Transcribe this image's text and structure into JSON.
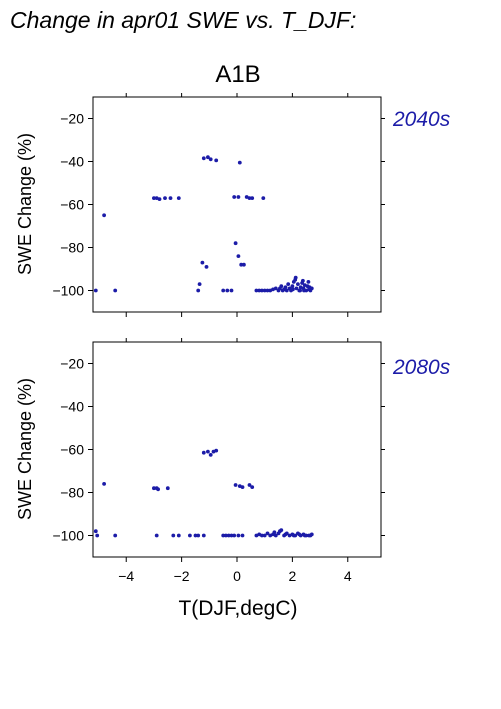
{
  "figure": {
    "title": "Change in apr01 SWE vs. T_DJF:",
    "scenario": "A1B",
    "xlabel": "T(DJF,degC)",
    "ylabel": "SWE Change (%)"
  },
  "colors": {
    "points": "#1c1ca8",
    "period_label": "#1c1ca8",
    "axis": "#000000"
  },
  "chart_data": [
    {
      "type": "scatter",
      "period": "2040s",
      "xlim": [
        -5.2,
        5.2
      ],
      "ylim": [
        -110,
        -10
      ],
      "xticks": [
        -4,
        -2,
        0,
        2,
        4
      ],
      "yticks": [
        -20,
        -40,
        -60,
        -80,
        -100
      ],
      "ytick_labels": [
        "−20",
        "−40",
        "−60",
        "−80",
        "−100"
      ],
      "xtick_labels": [],
      "points": [
        [
          -5.1,
          -100
        ],
        [
          -4.8,
          -65
        ],
        [
          -4.4,
          -100
        ],
        [
          -3.0,
          -57
        ],
        [
          -2.9,
          -57
        ],
        [
          -2.8,
          -57.5
        ],
        [
          -2.6,
          -57
        ],
        [
          -2.4,
          -57
        ],
        [
          -2.1,
          -57
        ],
        [
          -1.4,
          -100
        ],
        [
          -1.35,
          -97
        ],
        [
          -1.25,
          -87
        ],
        [
          -1.1,
          -89
        ],
        [
          -1.2,
          -38.5
        ],
        [
          -1.05,
          -38
        ],
        [
          -0.95,
          -39
        ],
        [
          -0.75,
          -39.5
        ],
        [
          0.1,
          -40.5
        ],
        [
          -0.5,
          -100
        ],
        [
          -0.35,
          -100
        ],
        [
          -0.2,
          -100
        ],
        [
          -0.05,
          -78
        ],
        [
          0.05,
          -84
        ],
        [
          0.15,
          -88
        ],
        [
          0.25,
          -88
        ],
        [
          -0.1,
          -56.5
        ],
        [
          0.05,
          -56.5
        ],
        [
          0.35,
          -56.5
        ],
        [
          0.45,
          -57
        ],
        [
          0.55,
          -57
        ],
        [
          0.95,
          -57
        ],
        [
          0.7,
          -100
        ],
        [
          0.8,
          -100
        ],
        [
          0.9,
          -100
        ],
        [
          1.0,
          -100
        ],
        [
          1.1,
          -100
        ],
        [
          1.2,
          -100
        ],
        [
          1.3,
          -99.5
        ],
        [
          1.4,
          -99
        ],
        [
          1.5,
          -100
        ],
        [
          1.6,
          -98
        ],
        [
          1.7,
          -99.5
        ],
        [
          1.8,
          -100
        ],
        [
          1.9,
          -99
        ],
        [
          2.0,
          -98
        ],
        [
          2.05,
          -96
        ],
        [
          2.1,
          -95
        ],
        [
          2.15,
          -99
        ],
        [
          2.2,
          -97
        ],
        [
          2.25,
          -100
        ],
        [
          2.3,
          -98.5
        ],
        [
          2.35,
          -96.5
        ],
        [
          2.4,
          -99
        ],
        [
          2.45,
          -97.5
        ],
        [
          2.5,
          -100
        ],
        [
          2.55,
          -98
        ],
        [
          2.6,
          -99.5
        ],
        [
          2.65,
          -100
        ],
        [
          2.7,
          -99
        ],
        [
          1.55,
          -99
        ],
        [
          1.75,
          -98.5
        ],
        [
          1.95,
          -100
        ],
        [
          2.12,
          -94
        ],
        [
          2.28,
          -100
        ],
        [
          2.42,
          -100
        ],
        [
          2.58,
          -96
        ],
        [
          1.85,
          -97
        ],
        [
          1.65,
          -100
        ],
        [
          2.02,
          -99.5
        ],
        [
          2.38,
          -95.5
        ],
        [
          2.62,
          -98.5
        ]
      ]
    },
    {
      "type": "scatter",
      "period": "2080s",
      "xlim": [
        -5.2,
        5.2
      ],
      "ylim": [
        -110,
        -10
      ],
      "xticks": [
        -4,
        -2,
        0,
        2,
        4
      ],
      "yticks": [
        -20,
        -40,
        -60,
        -80,
        -100
      ],
      "ytick_labels": [
        "−20",
        "−40",
        "−60",
        "−80",
        "−100"
      ],
      "xtick_labels": [
        "−4",
        "−2",
        "0",
        "2",
        "4"
      ],
      "points": [
        [
          -5.1,
          -98
        ],
        [
          -5.05,
          -100
        ],
        [
          -4.8,
          -76
        ],
        [
          -4.4,
          -100
        ],
        [
          -3.0,
          -78
        ],
        [
          -2.9,
          -78
        ],
        [
          -2.85,
          -78.5
        ],
        [
          -2.5,
          -78
        ],
        [
          -2.9,
          -100
        ],
        [
          -2.3,
          -100
        ],
        [
          -2.1,
          -100
        ],
        [
          -1.7,
          -100
        ],
        [
          -1.5,
          -100
        ],
        [
          -1.4,
          -100
        ],
        [
          -1.2,
          -100
        ],
        [
          -1.2,
          -61.5
        ],
        [
          -1.05,
          -61
        ],
        [
          -0.95,
          -62.5
        ],
        [
          -0.75,
          -60.5
        ],
        [
          -0.85,
          -61
        ],
        [
          -0.5,
          -100
        ],
        [
          -0.4,
          -100
        ],
        [
          -0.3,
          -100
        ],
        [
          -0.2,
          -100
        ],
        [
          -0.1,
          -100
        ],
        [
          0.05,
          -100
        ],
        [
          0.2,
          -100
        ],
        [
          -0.05,
          -76.5
        ],
        [
          0.1,
          -77
        ],
        [
          0.2,
          -77.5
        ],
        [
          0.45,
          -76.5
        ],
        [
          0.55,
          -77.5
        ],
        [
          0.7,
          -100
        ],
        [
          0.8,
          -99.5
        ],
        [
          0.9,
          -100
        ],
        [
          1.0,
          -100
        ],
        [
          1.1,
          -99
        ],
        [
          1.2,
          -100
        ],
        [
          1.3,
          -99.5
        ],
        [
          1.4,
          -100
        ],
        [
          1.5,
          -99
        ],
        [
          1.6,
          -97.5
        ],
        [
          1.7,
          -100
        ],
        [
          1.8,
          -99
        ],
        [
          1.9,
          -100
        ],
        [
          2.0,
          -99.5
        ],
        [
          2.1,
          -100
        ],
        [
          2.2,
          -99
        ],
        [
          2.3,
          -100
        ],
        [
          2.4,
          -99.5
        ],
        [
          2.5,
          -100
        ],
        [
          2.6,
          -100
        ],
        [
          2.7,
          -99.5
        ],
        [
          1.55,
          -98
        ],
        [
          1.75,
          -99.5
        ],
        [
          2.05,
          -100
        ],
        [
          2.25,
          -99.5
        ],
        [
          2.45,
          -100
        ],
        [
          2.65,
          -100
        ],
        [
          1.35,
          -98.5
        ]
      ]
    }
  ]
}
